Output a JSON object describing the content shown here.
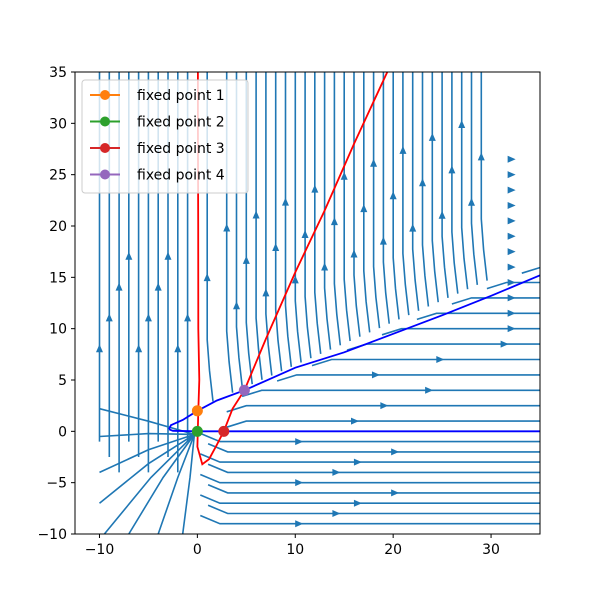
{
  "chart_data": {
    "type": "line",
    "title": "",
    "xlabel": "",
    "ylabel": "",
    "xlim": [
      -12.5,
      35
    ],
    "ylim": [
      -10,
      35
    ],
    "xticks": [
      -10,
      0,
      10,
      20,
      30
    ],
    "yticks": [
      -10,
      -5,
      0,
      5,
      10,
      15,
      20,
      25,
      30,
      35
    ],
    "xtick_labels": [
      "−10",
      "0",
      "10",
      "20",
      "30"
    ],
    "ytick_labels": [
      "−10",
      "−5",
      "0",
      "5",
      "10",
      "15",
      "20",
      "25",
      "30",
      "35"
    ],
    "grid": false,
    "legend_position": "top-left",
    "colors": {
      "streamline": "#1f77b4",
      "nullcline_x": "#0000ff",
      "nullcline_y": "#ff0000",
      "fixed_point_1": "#ff7f0e",
      "fixed_point_2": "#2ca02c",
      "fixed_point_3": "#d62728",
      "fixed_point_4": "#9467bd"
    },
    "fixed_points": [
      {
        "name": "fixed point 1",
        "x": 0,
        "y": 2,
        "color": "#ff7f0e"
      },
      {
        "name": "fixed point 2",
        "x": 0,
        "y": 0,
        "color": "#2ca02c"
      },
      {
        "name": "fixed point 3",
        "x": 2.7,
        "y": 0,
        "color": "#d62728"
      },
      {
        "name": "fixed point 4",
        "x": 4.8,
        "y": 4.0,
        "color": "#9467bd"
      }
    ],
    "nullcline_red": [
      [
        0.05,
        35
      ],
      [
        0.05,
        30
      ],
      [
        0.08,
        20
      ],
      [
        0.1,
        10
      ],
      [
        0.2,
        5
      ],
      [
        0.1,
        2
      ],
      [
        0.0,
        -1.5
      ],
      [
        0.5,
        -3.2
      ],
      [
        1.2,
        -2.7
      ],
      [
        2.0,
        -1.3
      ],
      [
        2.7,
        0
      ],
      [
        3.6,
        2.2
      ],
      [
        4.8,
        4.0
      ],
      [
        7,
        9
      ],
      [
        10,
        15.5
      ],
      [
        13,
        21.5
      ],
      [
        16,
        28
      ],
      [
        19.4,
        35
      ]
    ],
    "nullcline_blue_upper": [
      [
        -2.9,
        0.2
      ],
      [
        -2.7,
        0.6
      ],
      [
        -1.5,
        1.1
      ],
      [
        0,
        2
      ],
      [
        2,
        3.0
      ],
      [
        4.8,
        4.0
      ],
      [
        10,
        6.2
      ],
      [
        15,
        7.7
      ],
      [
        20,
        9.5
      ],
      [
        25,
        11.3
      ],
      [
        30,
        13.2
      ],
      [
        35,
        15.2
      ]
    ],
    "nullcline_blue_lower": [
      [
        -2.9,
        0.2
      ],
      [
        -2.5,
        0.05
      ],
      [
        0,
        0
      ],
      [
        35,
        0
      ]
    ],
    "streamlines": {
      "vertical_x": [
        -10,
        -9,
        -8,
        -7,
        -6,
        -5,
        -4,
        -3,
        -2,
        -1,
        1,
        3,
        4,
        5,
        6,
        7,
        8,
        9,
        10,
        11,
        12,
        13,
        14,
        15,
        16,
        17,
        18,
        19,
        20,
        21,
        22,
        23,
        24,
        25,
        26,
        27,
        28,
        29
      ],
      "horizontal_y": [
        -9,
        -8,
        -7,
        -6,
        -5,
        -4,
        -3,
        -2,
        -1,
        1,
        2.5,
        4,
        5.5,
        7,
        8.5,
        10,
        11.5,
        13,
        14.5,
        16,
        17.5,
        19,
        20.5,
        22,
        23.5,
        25,
        26.5
      ]
    }
  }
}
